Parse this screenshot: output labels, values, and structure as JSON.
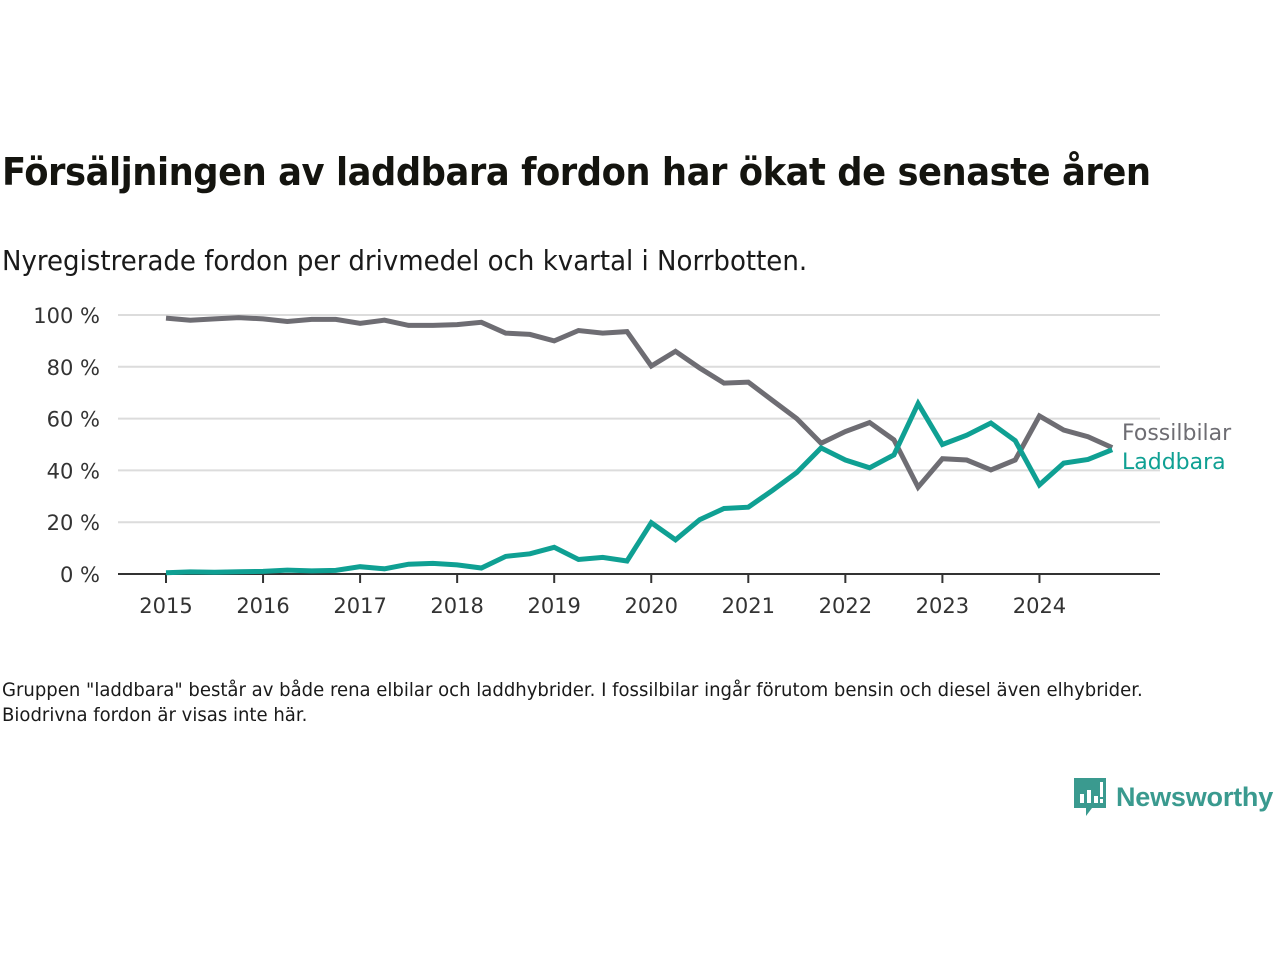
{
  "title": "Försäljningen av laddbara fordon har ökat de senaste åren",
  "subtitle": "Nyregistrerade fordon per drivmedel och kvartal i Norrbotten.",
  "footnote": "Gruppen \"laddbara\" består av både rena elbilar och laddhybrider. I fossilbilar ingår förutom bensin och diesel även elhybrider. Biodrivna fordon är visas inte här.",
  "logo": {
    "text": "Newsworthy",
    "icon": "newsworthy-bar-chart-icon",
    "color": "#3a9a8f"
  },
  "chart_data": {
    "type": "line",
    "title": "Försäljningen av laddbara fordon har ökat de senaste åren",
    "subtitle": "Nyregistrerade fordon per drivmedel och kvartal i Norrbotten.",
    "xlabel": "",
    "ylabel": "",
    "ylim": [
      0,
      100
    ],
    "yticks": [
      0,
      20,
      40,
      60,
      80,
      100
    ],
    "ytick_labels": [
      "0 %",
      "20 %",
      "40 %",
      "60 %",
      "80 %",
      "100 %"
    ],
    "xticks": [
      "2015",
      "2016",
      "2017",
      "2018",
      "2019",
      "2020",
      "2021",
      "2022",
      "2023",
      "2024"
    ],
    "x_start_year": 2015,
    "periods_per_year": 4,
    "grid": "horizontal",
    "legend": "inline-right",
    "series": [
      {
        "name": "Fossilbilar",
        "color": "#6e6d73",
        "values": [
          98.8,
          98.0,
          98.5,
          99.0,
          98.5,
          97.5,
          98.3,
          98.3,
          96.8,
          98.0,
          96.0,
          96.0,
          96.3,
          97.2,
          93.0,
          92.5,
          90.0,
          94.0,
          93.0,
          93.6,
          80.3,
          86.0,
          79.5,
          73.7,
          74.1,
          67.0,
          60.0,
          50.5,
          55.0,
          58.5,
          51.8,
          33.5,
          44.5,
          44.0,
          40.2,
          44.0,
          61.0,
          55.6,
          53.0,
          48.8
        ]
      },
      {
        "name": "Laddbara",
        "color": "#0fa093",
        "values": [
          0.5,
          0.8,
          0.7,
          0.9,
          1.0,
          1.5,
          1.2,
          1.4,
          2.8,
          2.0,
          3.8,
          4.1,
          3.5,
          2.3,
          6.8,
          7.8,
          10.3,
          5.6,
          6.4,
          5.0,
          19.8,
          13.2,
          21.0,
          25.3,
          25.8,
          32.3,
          39.2,
          48.7,
          44.0,
          41.0,
          46.0,
          65.8,
          50.0,
          53.6,
          58.3,
          51.5,
          34.4,
          42.8,
          44.2,
          48.0
        ]
      }
    ]
  }
}
